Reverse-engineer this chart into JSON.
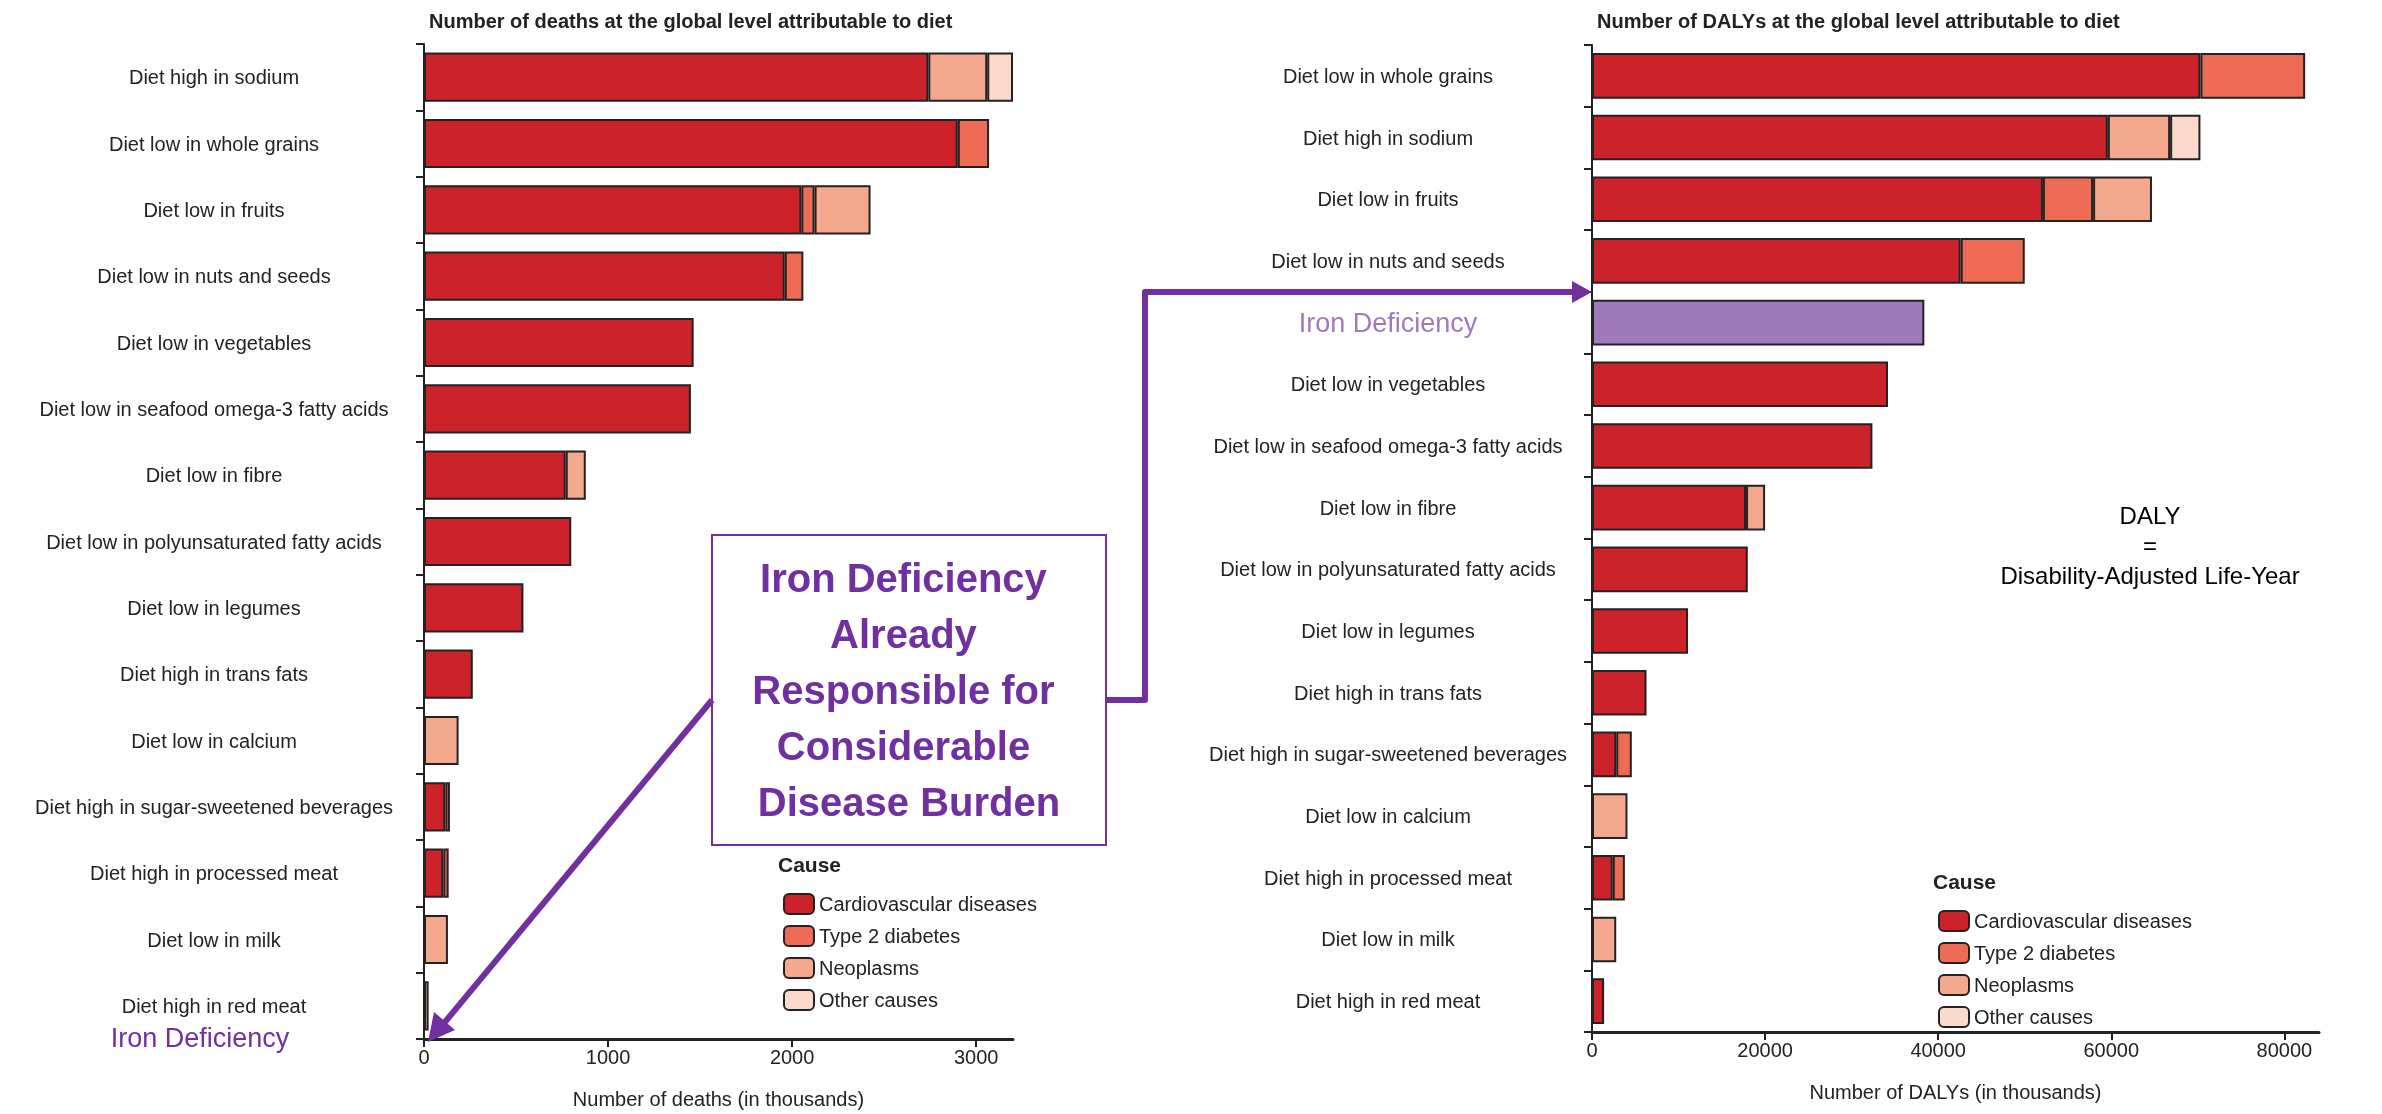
{
  "chart_data": [
    {
      "type": "bar",
      "orientation": "horizontal",
      "stacked": true,
      "title": "Number of deaths at the global level attributable to diet",
      "xlabel": "Number of deaths (in thousands)",
      "legend_title": "Cause",
      "legend": "bottom right",
      "grid": false,
      "categories": [
        "Diet high in sodium",
        "Diet low in whole grains",
        "Diet low in fruits",
        "Diet low in nuts and seeds",
        "Diet low in vegetables",
        "Diet low in seafood omega-3 fatty acids",
        "Diet low in fibre",
        "Diet low in polyunsaturated fatty acids",
        "Diet low in legumes",
        "Diet high in trans fats",
        "Diet low in calcium",
        "Diet high in sugar-sweetened beverages",
        "Diet high in processed meat",
        "Diet low in milk",
        "Diet high in red meat"
      ],
      "xlim": [
        0,
        3200
      ],
      "xticks": [
        0,
        1000,
        2000,
        3000
      ],
      "series": [
        {
          "name": "Cardiovascular diseases",
          "color": "#cc2229",
          "values": [
            2740,
            2900,
            2050,
            1960,
            1465,
            1450,
            770,
            800,
            540,
            265,
            null,
            116,
            105,
            null,
            null
          ]
        },
        {
          "name": "Type 2 diabetes",
          "color": "#ee6b55",
          "values": [
            null,
            170,
            72,
            101,
            null,
            null,
            null,
            null,
            null,
            null,
            null,
            25,
            29,
            null,
            null
          ]
        },
        {
          "name": "Neoplasms",
          "color": "#f4a98e",
          "values": [
            320,
            null,
            304,
            null,
            null,
            null,
            109,
            null,
            null,
            null,
            188,
            null,
            null,
            130,
            25
          ]
        },
        {
          "name": "Other causes",
          "color": "#fbd9cb",
          "values": [
            140,
            null,
            null,
            null,
            null,
            null,
            null,
            null,
            null,
            null,
            null,
            null,
            null,
            null,
            null
          ]
        }
      ],
      "annotations": [
        "Iron Deficiency",
        "Iron Deficiency Already Responsible for Considerable Disease Burden"
      ]
    },
    {
      "type": "bar",
      "orientation": "horizontal",
      "stacked": true,
      "title": "Number of DALYs at the global level attributable to diet",
      "xlabel": "Number of DALYs (in thousands)",
      "legend_title": "Cause",
      "legend": "bottom right",
      "grid": false,
      "categories": [
        "Diet low in whole grains",
        "Diet high in sodium",
        "Diet low in fruits",
        "Diet low in nuts and seeds",
        "Iron Deficiency",
        "Diet low in vegetables",
        "Diet low in seafood omega-3 fatty acids",
        "Diet low in fibre",
        "Diet low in polyunsaturated fatty acids",
        "Diet low in legumes",
        "Diet high in trans fats",
        "Diet high in sugar-sweetened beverages",
        "Diet low in calcium",
        "Diet high in processed meat",
        "Diet low in milk",
        "Diet high in red meat"
      ],
      "xlim": [
        0,
        84000
      ],
      "xticks": [
        0,
        20000,
        40000,
        60000,
        80000
      ],
      "series": [
        {
          "name": "Cardiovascular diseases",
          "color": "#cc2229",
          "values": [
            70300,
            59600,
            52100,
            42600,
            null,
            34200,
            32400,
            17800,
            18000,
            11100,
            6300,
            2800,
            null,
            2400,
            null,
            1400
          ]
        },
        {
          "name": "Type 2 diabetes",
          "color": "#ee6b55",
          "values": [
            12100,
            null,
            5800,
            7400,
            null,
            null,
            null,
            null,
            null,
            null,
            null,
            1800,
            null,
            1400,
            null,
            null
          ]
        },
        {
          "name": "Neoplasms",
          "color": "#f4a98e",
          "values": [
            null,
            7200,
            6800,
            null,
            null,
            null,
            null,
            2200,
            null,
            null,
            null,
            null,
            4100,
            null,
            2800,
            null
          ]
        },
        {
          "name": "Other causes",
          "color": "#fbd9cb",
          "values": [
            null,
            3500,
            null,
            null,
            null,
            null,
            null,
            null,
            null,
            null,
            null,
            null,
            null,
            null,
            null,
            null
          ]
        },
        {
          "color": "#a07abc",
          "values": [
            null,
            null,
            null,
            null,
            38400,
            null,
            null,
            null,
            null,
            null,
            null,
            null,
            null,
            null,
            null,
            null
          ]
        }
      ],
      "annotations": [
        "DALY\n=\nDisability-Adjusted Life-Year"
      ]
    }
  ]
}
